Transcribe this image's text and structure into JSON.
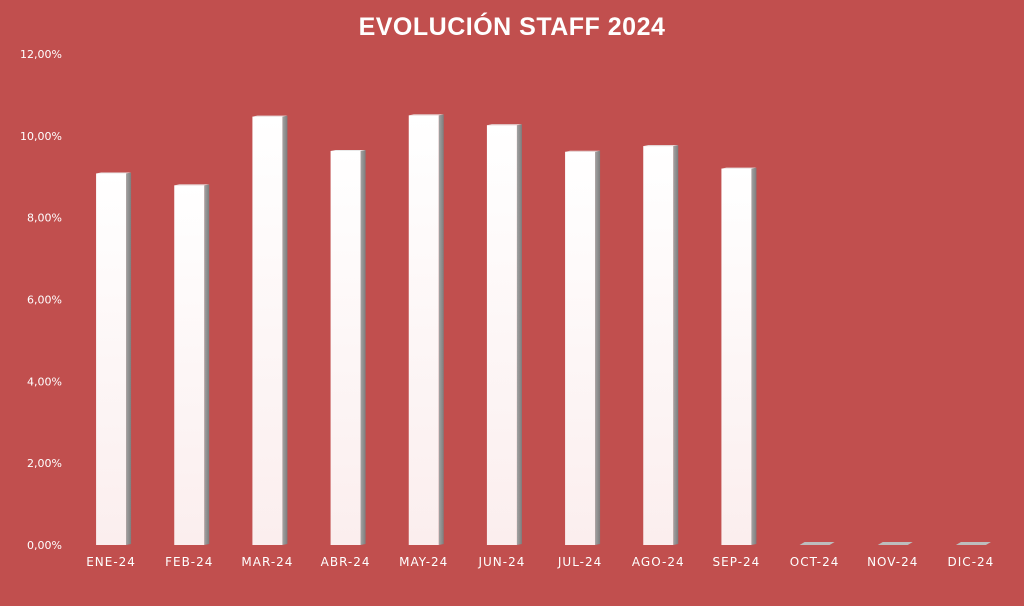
{
  "chart_data": {
    "type": "bar",
    "title": "EVOLUCIÓN STAFF 2024",
    "xlabel": "",
    "ylabel": "",
    "categories": [
      "ENE-24",
      "FEB-24",
      "MAR-24",
      "ABR-24",
      "MAY-24",
      "JUN-24",
      "JUL-24",
      "AGO-24",
      "SEP-24",
      "OCT-24",
      "NOV-24",
      "DIC-24"
    ],
    "values": [
      9.08,
      8.79,
      10.47,
      9.63,
      10.5,
      10.26,
      9.61,
      9.75,
      9.2,
      0,
      0,
      0
    ],
    "value_unit": "%",
    "ylim": [
      0,
      12
    ],
    "y_ticks": [
      0,
      2,
      4,
      6,
      8,
      10,
      12
    ],
    "y_tick_labels": [
      "0,00%",
      "2,00%",
      "4,00%",
      "6,00%",
      "8,00%",
      "10,00%",
      "12,00%"
    ],
    "grid": false,
    "legend": "none",
    "colors": {
      "background": "#c14f4e",
      "bar_front": "#ffffff",
      "bar_side": "#8f8f8f",
      "text": "#ffffff"
    }
  }
}
